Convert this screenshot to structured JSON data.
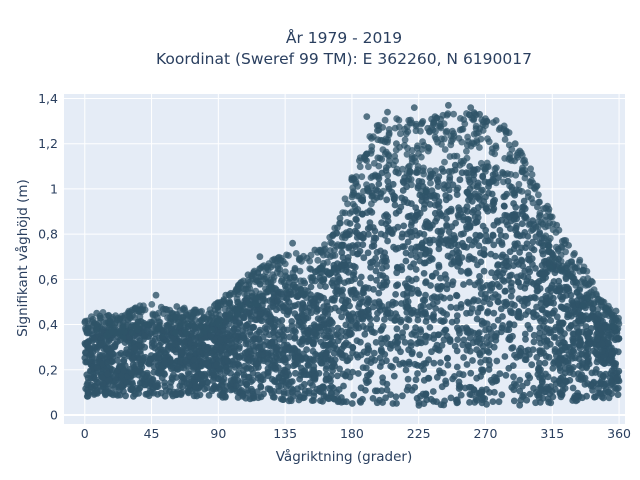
{
  "chart_data": {
    "type": "scatter",
    "title_lines": [
      "År 1979 - 2019",
      "Koordinat (Sweref 99 TM): E 362260, N 6190017"
    ],
    "xlabel": "Vågriktning (grader)",
    "ylabel": "Signifikant våghöjd (m)",
    "xlim": [
      -14,
      364
    ],
    "ylim": [
      -0.04,
      1.42
    ],
    "x_ticks": [
      0,
      45,
      90,
      135,
      180,
      225,
      270,
      315,
      360
    ],
    "x_tick_labels": [
      "0",
      "45",
      "90",
      "135",
      "180",
      "225",
      "270",
      "315",
      "360"
    ],
    "y_ticks": [
      0,
      0.2,
      0.4,
      0.6,
      0.8,
      1.0,
      1.2,
      1.4
    ],
    "y_tick_labels": [
      "0",
      "0,2",
      "0,4",
      "0,6",
      "0,8",
      "1",
      "1,2",
      "1,4"
    ],
    "grid": true,
    "legend": "none",
    "colors": {
      "marker": "#2f5468",
      "plot_bg": "#e5ecf6",
      "grid": "#ffffff",
      "text": "#2a3f5f"
    },
    "envelope": {
      "direction": [
        0,
        10,
        20,
        30,
        40,
        50,
        60,
        70,
        80,
        90,
        100,
        110,
        120,
        130,
        140,
        150,
        160,
        170,
        180,
        190,
        200,
        210,
        220,
        230,
        240,
        250,
        260,
        270,
        280,
        290,
        300,
        310,
        320,
        330,
        340,
        350,
        360
      ],
      "min_height": [
        0.08,
        0.08,
        0.08,
        0.08,
        0.08,
        0.08,
        0.08,
        0.08,
        0.08,
        0.08,
        0.07,
        0.07,
        0.07,
        0.06,
        0.06,
        0.06,
        0.06,
        0.05,
        0.05,
        0.05,
        0.05,
        0.04,
        0.04,
        0.04,
        0.04,
        0.04,
        0.04,
        0.04,
        0.04,
        0.04,
        0.05,
        0.05,
        0.05,
        0.06,
        0.07,
        0.07,
        0.08
      ],
      "max_height": [
        0.42,
        0.46,
        0.44,
        0.46,
        0.5,
        0.48,
        0.46,
        0.48,
        0.46,
        0.5,
        0.55,
        0.62,
        0.66,
        0.7,
        0.72,
        0.7,
        0.74,
        0.85,
        1.05,
        1.22,
        1.3,
        1.33,
        1.32,
        1.3,
        1.33,
        1.36,
        1.35,
        1.34,
        1.3,
        1.22,
        1.1,
        0.95,
        0.82,
        0.72,
        0.62,
        0.5,
        0.44
      ]
    },
    "notable_points": [
      {
        "x": 0,
        "y": 0.41
      },
      {
        "x": 8,
        "y": 0.45
      },
      {
        "x": 27,
        "y": 0.44
      },
      {
        "x": 48,
        "y": 0.53
      },
      {
        "x": 62,
        "y": 0.48
      },
      {
        "x": 95,
        "y": 0.53
      },
      {
        "x": 110,
        "y": 0.62
      },
      {
        "x": 118,
        "y": 0.7
      },
      {
        "x": 140,
        "y": 0.76
      },
      {
        "x": 155,
        "y": 0.73
      },
      {
        "x": 172,
        "y": 0.87
      },
      {
        "x": 180,
        "y": 1.05
      },
      {
        "x": 190,
        "y": 1.32
      },
      {
        "x": 197,
        "y": 1.28
      },
      {
        "x": 204,
        "y": 1.34
      },
      {
        "x": 210,
        "y": 1.2
      },
      {
        "x": 222,
        "y": 1.36
      },
      {
        "x": 236,
        "y": 1.32
      },
      {
        "x": 245,
        "y": 1.37
      },
      {
        "x": 260,
        "y": 1.36
      },
      {
        "x": 266,
        "y": 1.33
      },
      {
        "x": 271,
        "y": 1.3
      },
      {
        "x": 280,
        "y": 1.27
      },
      {
        "x": 290,
        "y": 1.2
      },
      {
        "x": 300,
        "y": 1.03
      },
      {
        "x": 305,
        "y": 0.92
      },
      {
        "x": 318,
        "y": 0.84
      },
      {
        "x": 326,
        "y": 0.75
      },
      {
        "x": 336,
        "y": 0.64
      },
      {
        "x": 340,
        "y": 0.58
      },
      {
        "x": 349,
        "y": 0.5
      },
      {
        "x": 358,
        "y": 0.46
      }
    ]
  }
}
